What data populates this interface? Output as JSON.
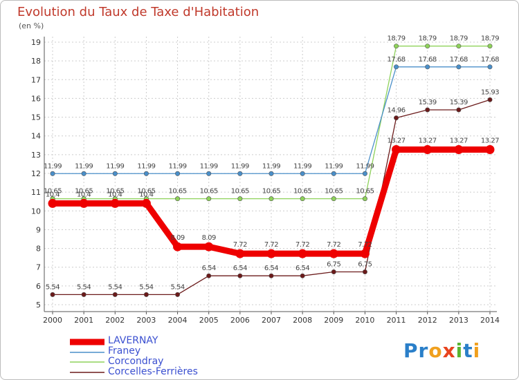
{
  "title": "Evolution du Taux de Taxe d'Habitation",
  "subtitle": "(en %)",
  "logo_text": "Proxiti",
  "chart_data": {
    "type": "line",
    "title": "Evolution du Taux de Taxe d'Habitation",
    "subtitle": "(en %)",
    "x": [
      2000,
      2001,
      2002,
      2003,
      2004,
      2005,
      2006,
      2007,
      2008,
      2009,
      2010,
      2011,
      2012,
      2013,
      2014
    ],
    "ylim": [
      5,
      19
    ],
    "yticks": [
      5,
      6,
      7,
      8,
      9,
      10,
      11,
      12,
      13,
      14,
      15,
      16,
      17,
      18,
      19
    ],
    "grid": true,
    "legend_position": "bottom-left",
    "series": [
      {
        "name": "Corcelles-Ferrières",
        "color": "#6b1a1a",
        "values": [
          5.54,
          5.54,
          5.54,
          5.54,
          5.54,
          6.54,
          6.54,
          6.54,
          6.54,
          6.75,
          6.75,
          14.96,
          15.39,
          15.39,
          15.93
        ],
        "labels": [
          "5.54",
          "5.54",
          "5.54",
          "5.54",
          "5.54",
          "6.54",
          "6.54",
          "6.54",
          "6.54",
          "6.75",
          "6.75",
          "14.96",
          "15.39",
          "15.39",
          "15.93"
        ]
      },
      {
        "name": "Corcondray",
        "color": "#8ed25a",
        "values": [
          10.65,
          10.65,
          10.65,
          10.65,
          10.65,
          10.65,
          10.65,
          10.65,
          10.65,
          10.65,
          10.65,
          18.79,
          18.79,
          18.79,
          18.79
        ],
        "labels": [
          "10.65",
          "10.65",
          "10.65",
          "10.65",
          "10.65",
          "10.65",
          "10.65",
          "10.65",
          "10.65",
          "10.65",
          "10.65",
          "18.79",
          "18.79",
          "18.79",
          "18.79"
        ]
      },
      {
        "name": "Franey",
        "color": "#4a8fc9",
        "values": [
          11.99,
          11.99,
          11.99,
          11.99,
          11.99,
          11.99,
          11.99,
          11.99,
          11.99,
          11.99,
          11.99,
          17.68,
          17.68,
          17.68,
          17.68
        ],
        "labels": [
          "11.99",
          "11.99",
          "11.99",
          "11.99",
          "11.99",
          "11.99",
          "11.99",
          "11.99",
          "11.99",
          "11.99",
          "11.99",
          "17.68",
          "17.68",
          "17.68",
          "17.68"
        ]
      },
      {
        "name": "LAVERNAY",
        "color": "#ee0000",
        "values": [
          10.4,
          10.4,
          10.4,
          10.4,
          8.09,
          8.09,
          7.72,
          7.72,
          7.72,
          7.72,
          7.72,
          13.27,
          13.27,
          13.27,
          13.27
        ],
        "labels": [
          "10.4",
          "10.4",
          "10.4",
          "10.4",
          "8.09",
          "8.09",
          "7.72",
          "7.72",
          "7.72",
          "7.72",
          "7.72",
          "13.27",
          "13.27",
          "13.27",
          "13.27"
        ]
      }
    ],
    "legend": [
      "LAVERNAY",
      "Franey",
      "Corcondray",
      "Corcelles-Ferrières"
    ]
  }
}
